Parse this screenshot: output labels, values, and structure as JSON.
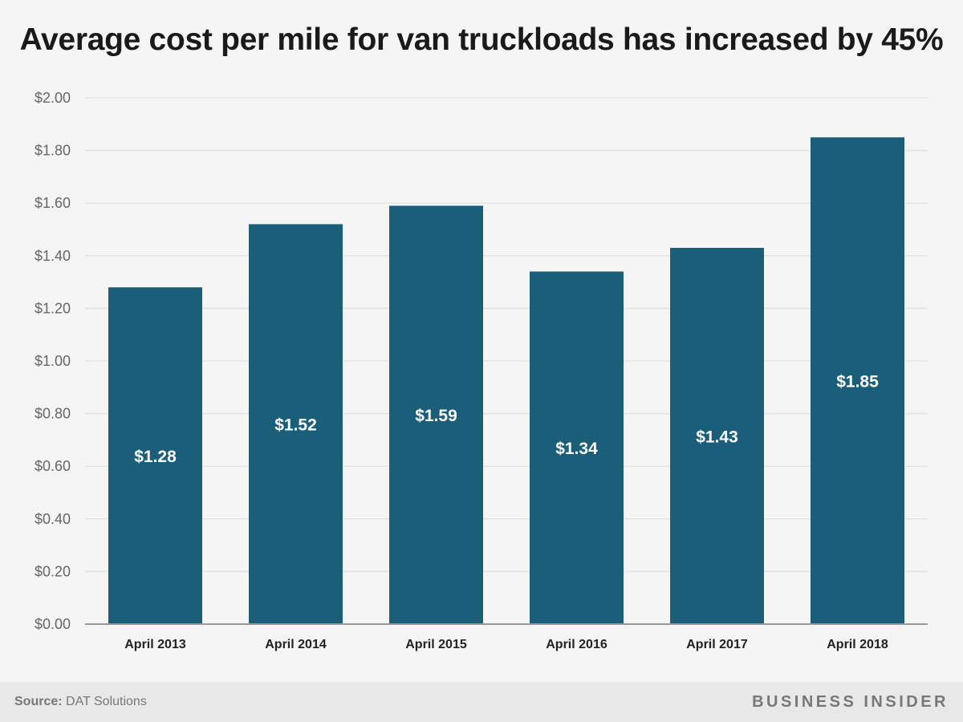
{
  "chart_data": {
    "type": "bar",
    "title": "Average cost per mile for van truckloads has increased by 45%",
    "categories": [
      "April 2013",
      "April 2014",
      "April 2015",
      "April 2016",
      "April 2017",
      "April 2018"
    ],
    "values": [
      1.28,
      1.52,
      1.59,
      1.34,
      1.43,
      1.85
    ],
    "value_labels": [
      "$1.28",
      "$1.52",
      "$1.59",
      "$1.34",
      "$1.43",
      "$1.85"
    ],
    "y_ticks": [
      "$0.00",
      "$0.20",
      "$0.40",
      "$0.60",
      "$0.80",
      "$1.00",
      "$1.20",
      "$1.40",
      "$1.60",
      "$1.80",
      "$2.00"
    ],
    "ylim": [
      0,
      2
    ],
    "grid": true,
    "legend": "none",
    "bar_color": "#1a5e7a",
    "label_color": "#ffffff",
    "grid_color": "#e3e3e3",
    "axis_color": "#999999"
  },
  "footer": {
    "source_label": "Source:",
    "source_text": "DAT Solutions",
    "brand": "BUSINESS INSIDER"
  }
}
